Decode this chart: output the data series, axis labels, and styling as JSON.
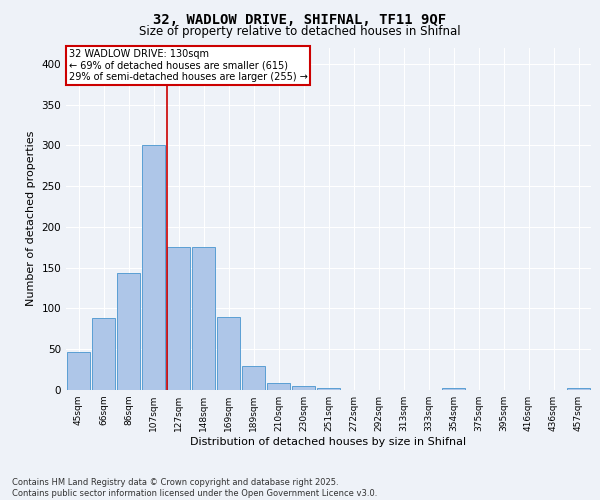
{
  "title_line1": "32, WADLOW DRIVE, SHIFNAL, TF11 9QF",
  "title_line2": "Size of property relative to detached houses in Shifnal",
  "xlabel": "Distribution of detached houses by size in Shifnal",
  "ylabel": "Number of detached properties",
  "categories": [
    "45sqm",
    "66sqm",
    "86sqm",
    "107sqm",
    "127sqm",
    "148sqm",
    "169sqm",
    "189sqm",
    "210sqm",
    "230sqm",
    "251sqm",
    "272sqm",
    "292sqm",
    "313sqm",
    "333sqm",
    "354sqm",
    "375sqm",
    "395sqm",
    "416sqm",
    "436sqm",
    "457sqm"
  ],
  "values": [
    47,
    88,
    143,
    300,
    175,
    175,
    90,
    30,
    9,
    5,
    2,
    0,
    0,
    0,
    0,
    2,
    0,
    0,
    0,
    0,
    2
  ],
  "bar_color": "#aec6e8",
  "bar_edge_color": "#5a9fd4",
  "vline_x_index": 4,
  "vline_color": "#cc0000",
  "annotation_text": "32 WADLOW DRIVE: 130sqm\n← 69% of detached houses are smaller (615)\n29% of semi-detached houses are larger (255) →",
  "annotation_box_color": "#ffffff",
  "annotation_box_edge_color": "#cc0000",
  "ylim": [
    0,
    420
  ],
  "yticks": [
    0,
    50,
    100,
    150,
    200,
    250,
    300,
    350,
    400
  ],
  "background_color": "#eef2f8",
  "grid_color": "#ffffff",
  "footer_line1": "Contains HM Land Registry data © Crown copyright and database right 2025.",
  "footer_line2": "Contains public sector information licensed under the Open Government Licence v3.0."
}
